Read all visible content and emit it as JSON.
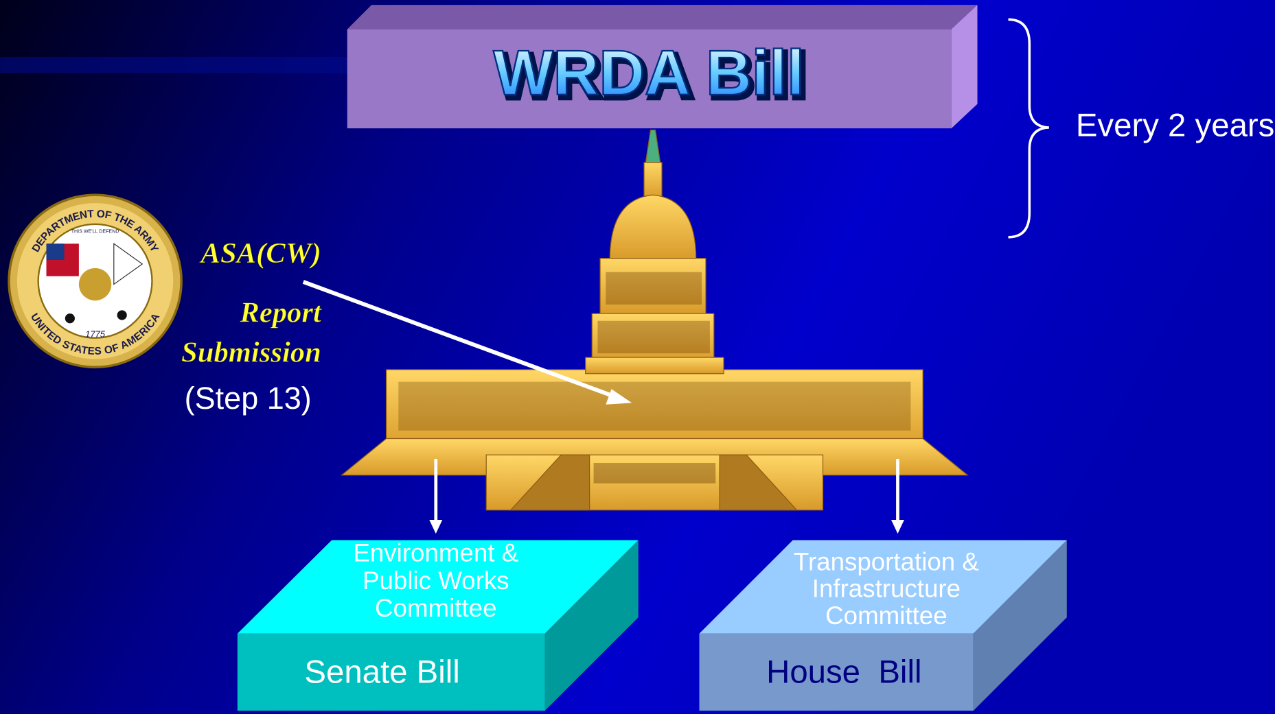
{
  "title": "WRDA Bill",
  "cycle": "Every 2 years",
  "seal": {
    "top_text": "DEPARTMENT OF THE ARMY",
    "bottom_text": "UNITED STATES OF AMERICA",
    "motto": "THIS WE'LL DEFEND",
    "year": "1775"
  },
  "submitter": "ASA(CW)",
  "action": [
    "Report",
    "Submission"
  ],
  "step": "(Step 13)",
  "senate": {
    "committee": [
      "Environment &",
      "Public Works",
      "Committee"
    ],
    "bill": "Senate Bill"
  },
  "house": {
    "committee": [
      "Transportation &",
      "Infrastructure",
      "Committee"
    ],
    "bill": "House  Bill"
  }
}
